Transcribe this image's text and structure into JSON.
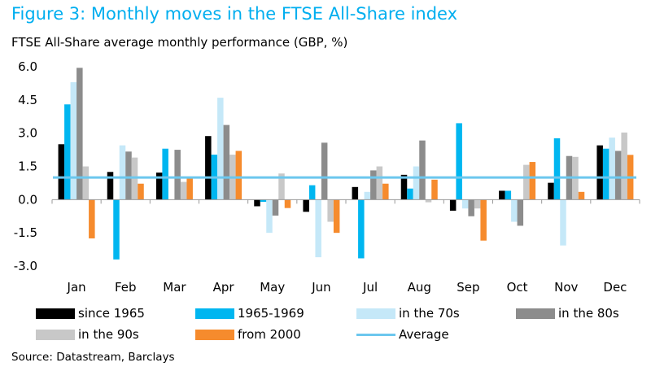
{
  "title": "Figure 3: Monthly moves in the FTSE All-Share index",
  "subtitle": "FTSE All-Share average monthly performance (GBP, %)",
  "source": "Source: Datastream, Barclays",
  "colors": {
    "title": "#00aeef",
    "axis": "#9a9a9a",
    "since_1965": "#000000",
    "y1965_1969": "#00b6f0",
    "in_70s": "#c5e8f8",
    "in_80s": "#8c8c8c",
    "in_90s": "#c8c8c8",
    "from_2000": "#f68b2d",
    "average": "#6cc7ee"
  },
  "chart_data": {
    "type": "bar",
    "categories": [
      "Jan",
      "Feb",
      "Mar",
      "Apr",
      "May",
      "Jun",
      "Jul",
      "Aug",
      "Sep",
      "Oct",
      "Nov",
      "Dec"
    ],
    "ylim": [
      -3.0,
      6.0
    ],
    "yticks": [
      "6.0",
      "4.5",
      "3.0",
      "1.5",
      "0.0",
      "-1.5",
      "-3.0"
    ],
    "ytick_values": [
      6.0,
      4.5,
      3.0,
      1.5,
      0.0,
      -1.5,
      -3.0
    ],
    "legend_position": "bottom",
    "grid": false,
    "series": [
      {
        "name": "since 1965",
        "color": "#000000",
        "values": [
          2.5,
          1.25,
          1.22,
          2.87,
          -0.3,
          -0.55,
          0.57,
          1.12,
          -0.5,
          0.4,
          0.76,
          2.45
        ]
      },
      {
        "name": "1965-1969",
        "color": "#00b6f0",
        "values": [
          4.3,
          -2.7,
          2.3,
          2.03,
          -0.1,
          0.65,
          -2.65,
          0.5,
          3.45,
          0.4,
          2.77,
          2.3
        ]
      },
      {
        "name": "in the 70s",
        "color": "#c5e8f8",
        "values": [
          5.3,
          2.45,
          0.0,
          4.6,
          -1.5,
          -2.6,
          0.35,
          1.5,
          -0.4,
          -1.0,
          -2.07,
          2.8
        ]
      },
      {
        "name": "in the 80s",
        "color": "#8c8c8c",
        "values": [
          5.95,
          2.17,
          2.25,
          3.37,
          -0.72,
          2.57,
          1.32,
          2.67,
          -0.75,
          -1.18,
          1.97,
          2.2
        ]
      },
      {
        "name": "in the 90s",
        "color": "#c8c8c8",
        "values": [
          1.5,
          1.9,
          0.8,
          2.03,
          1.18,
          -1.0,
          1.5,
          -0.12,
          -0.4,
          1.57,
          1.93,
          3.03
        ]
      },
      {
        "name": "from 2000",
        "color": "#f68b2d",
        "values": [
          -1.75,
          0.72,
          0.97,
          2.2,
          -0.38,
          -1.5,
          0.72,
          0.9,
          -1.85,
          1.7,
          0.35,
          2.02
        ]
      }
    ],
    "average": {
      "name": "Average",
      "color": "#6cc7ee",
      "value": 1.0
    }
  }
}
